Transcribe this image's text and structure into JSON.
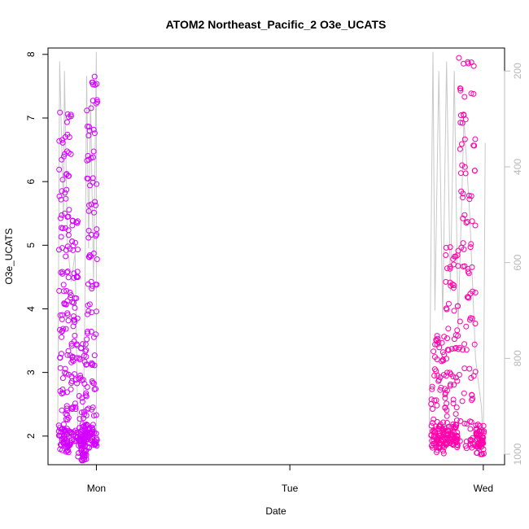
{
  "chart_data": {
    "type": "scatter",
    "title": "ATOM2 Northeast_Pacific_2 O3e_UCATS",
    "xlabel": "Date",
    "ylabel": "O3e_UCATS",
    "x_ticks": [
      "Mon",
      "Tue",
      "Wed"
    ],
    "x_tick_days": [
      1,
      2,
      3
    ],
    "xlim_days": [
      0.75,
      3.11
    ],
    "ylim": [
      1.55,
      8.1
    ],
    "y_ticks": [
      2,
      3,
      4,
      5,
      6,
      7,
      8
    ],
    "right_axis": {
      "ticks": [
        200,
        400,
        600,
        800,
        1000
      ],
      "lim": [
        1022,
        152
      ],
      "color": "#bebebe"
    },
    "grid": false,
    "legend": "none",
    "colors": {
      "early": "#d400ff",
      "late": "#ff00aa",
      "pressure": "#c8c8c8"
    },
    "series": [
      {
        "kind": "ozone_points",
        "clusters": [
          {
            "day": [
              0.805,
              0.87
            ],
            "levels": [
              1.8,
              1.9,
              2.0,
              2.05,
              2.2,
              2.4,
              2.7,
              3.0,
              3.3,
              3.6,
              3.9,
              4.1,
              4.3,
              4.5,
              4.9,
              5.2,
              5.5,
              5.8,
              6.1,
              6.4,
              6.7,
              7.0
            ]
          },
          {
            "day": [
              0.87,
              0.905
            ],
            "levels": [
              2.0,
              2.5,
              2.9,
              3.2,
              3.5,
              3.8,
              4.1,
              4.5,
              5.0,
              5.4
            ]
          },
          {
            "day": [
              0.905,
              0.95
            ],
            "levels": [
              1.7,
              1.8,
              1.9,
              2.0,
              2.1,
              2.3,
              2.6,
              2.9,
              3.2,
              3.4
            ]
          },
          {
            "day": [
              0.95,
              1.005
            ],
            "levels": [
              1.9,
              2.0,
              2.1,
              2.4,
              2.8,
              3.2,
              3.6,
              4.0,
              4.4,
              4.8,
              5.2,
              5.6,
              6.0,
              6.4,
              6.8,
              7.2,
              7.6
            ]
          },
          {
            "day": [
              2.73,
              2.8
            ],
            "levels": [
              1.8,
              1.9,
              2.0,
              2.1,
              2.2,
              2.5,
              2.8,
              3.0,
              3.2,
              3.4,
              3.55
            ]
          },
          {
            "day": [
              2.8,
              2.87
            ],
            "levels": [
              1.9,
              1.95,
              2.0,
              2.1,
              2.2,
              2.4,
              2.6,
              2.8,
              3.0,
              3.3,
              3.6,
              4.0,
              4.4,
              4.7,
              4.9
            ]
          },
          {
            "day": [
              2.87,
              2.96
            ],
            "levels": [
              1.9,
              2.2,
              2.6,
              3.0,
              3.4,
              3.8,
              4.2,
              4.6,
              5.0,
              5.4,
              5.8,
              6.2,
              6.6,
              7.0,
              7.4,
              7.9
            ]
          },
          {
            "day": [
              2.96,
              3.005
            ],
            "levels": [
              1.8,
              1.9,
              2.0,
              2.1
            ]
          }
        ]
      },
      {
        "kind": "pressure_line",
        "points": [
          [
            0.8,
            960
          ],
          [
            0.81,
            180
          ],
          [
            0.83,
            500
          ],
          [
            0.835,
            200
          ],
          [
            0.85,
            560
          ],
          [
            0.87,
            640
          ],
          [
            0.89,
            580
          ],
          [
            0.905,
            980
          ],
          [
            0.93,
            1000
          ],
          [
            0.94,
            700
          ],
          [
            0.95,
            210
          ],
          [
            0.96,
            570
          ],
          [
            0.97,
            260
          ],
          [
            0.985,
            640
          ],
          [
            1.0,
            160
          ],
          [
            1.0,
            970
          ]
        ]
      },
      {
        "kind": "pressure_line",
        "points": [
          [
            2.72,
            960
          ],
          [
            2.74,
            160
          ],
          [
            2.75,
            700
          ],
          [
            2.77,
            200
          ],
          [
            2.79,
            720
          ],
          [
            2.81,
            180
          ],
          [
            2.83,
            660
          ],
          [
            2.85,
            200
          ],
          [
            2.87,
            740
          ],
          [
            2.9,
            300
          ],
          [
            2.93,
            500
          ],
          [
            2.96,
            800
          ],
          [
            2.99,
            900
          ],
          [
            3.0,
            980
          ],
          [
            3.01,
            350
          ]
        ]
      }
    ]
  }
}
